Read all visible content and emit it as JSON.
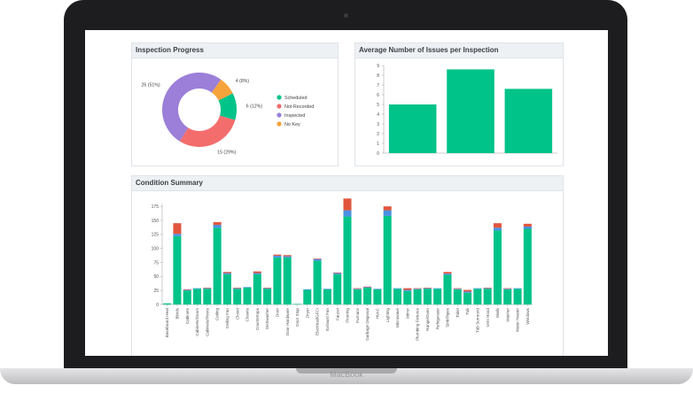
{
  "device": {
    "brand": "MacBook"
  },
  "panels": {
    "progress": {
      "title": "Inspection Progress"
    },
    "average": {
      "title": "Average Number of Issues per Inspection"
    },
    "condition": {
      "title": "Condition Summary"
    }
  },
  "colors": {
    "scheduled": "#00c389",
    "not_recorded": "#f46d6d",
    "inspected": "#9b7fd8",
    "no_key": "#f7a33c",
    "blue": "#4a90e2",
    "red": "#e2553d"
  },
  "chart_data": [
    {
      "type": "pie",
      "title": "Inspection Progress",
      "labels": [
        "Scheduled",
        "Not Recorded",
        "Inspected",
        "No Key"
      ],
      "values": [
        6,
        15,
        26,
        4
      ],
      "slice_labels": [
        "6 (12%)",
        "15 (29%)",
        "26 (51%)",
        "4 (8%)"
      ],
      "legend": "right"
    },
    {
      "type": "bar",
      "title": "Average Number of Issues per Inspection",
      "categories": [
        "",
        "",
        ""
      ],
      "values": [
        5,
        8.6,
        6.6
      ],
      "ylim": [
        0,
        9
      ],
      "yticks": [
        0,
        1,
        2,
        3,
        4,
        5,
        6,
        7,
        8,
        9
      ]
    },
    {
      "type": "bar",
      "title": "Condition Summary",
      "ylim": [
        0,
        180
      ],
      "yticks": [
        0,
        25,
        50,
        75,
        100,
        125,
        150,
        175
      ],
      "categories": [
        "Baseboard Heat",
        "Blinds",
        "Cabinets",
        "Cabinets/Doors",
        "Cabinets/Pivots",
        "Ceiling",
        "Ceiling Fan",
        "Closet",
        "Closets",
        "Countertops",
        "Dishwasher",
        "Door",
        "Door Hardware",
        "Door Stop",
        "Dryer",
        "Electrical/GFCI",
        "Exhaust Fan",
        "Faucet",
        "Flooring",
        "Furnace",
        "Garbage Disposal",
        "HVAC",
        "Lighting",
        "Microwave",
        "Mirror",
        "Plumbing Fixtures",
        "Range/Oven",
        "Refrigerator",
        "Sink/Pipes",
        "Toilet",
        "Tub",
        "Tub Surround",
        "Vent Hood",
        "Walls",
        "Washer",
        "Water Heater",
        "Windows"
      ],
      "series": [
        {
          "color": "#00c389",
          "values": [
            2,
            122,
            25,
            28,
            28,
            137,
            54,
            28,
            30,
            54,
            28,
            84,
            84,
            1,
            26,
            78,
            27,
            54,
            157,
            27,
            30,
            27,
            158,
            28,
            24,
            27,
            28,
            28,
            53,
            27,
            21,
            28,
            28,
            132,
            27,
            28,
            135
          ]
        },
        {
          "color": "#4a90e2",
          "values": [
            0,
            4,
            1,
            1,
            1,
            5,
            2,
            1,
            1,
            2,
            1,
            3,
            2,
            0,
            1,
            3,
            1,
            2,
            11,
            1,
            1,
            1,
            10,
            1,
            2,
            1,
            1,
            1,
            2,
            1,
            2,
            1,
            1,
            5,
            1,
            1,
            4
          ]
        },
        {
          "color": "#e2553d",
          "values": [
            0,
            19,
            1,
            0,
            1,
            5,
            2,
            1,
            0,
            3,
            1,
            2,
            2,
            0,
            0,
            1,
            0,
            1,
            21,
            1,
            1,
            0,
            7,
            0,
            3,
            1,
            1,
            0,
            3,
            1,
            3,
            0,
            1,
            8,
            1,
            0,
            5
          ]
        }
      ]
    }
  ]
}
